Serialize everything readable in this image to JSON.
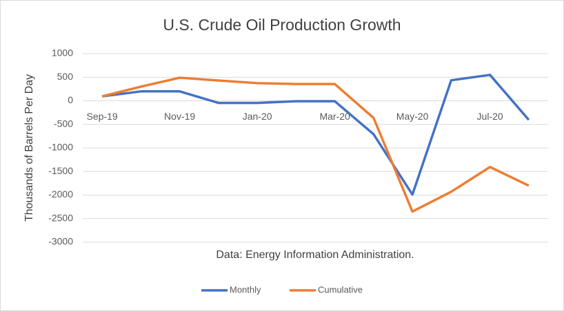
{
  "chart_data": {
    "type": "line",
    "title": "U.S. Crude Oil Production Growth",
    "y_label": "Thousands of Barrels Per Day",
    "annotation": "Data: Energy Information Administration.",
    "categories": [
      "Sep-19",
      null,
      "Nov-19",
      null,
      "Jan-20",
      null,
      "Mar-20",
      null,
      "May-20",
      null,
      "Jul-20",
      null
    ],
    "series": [
      {
        "name": "Monthly",
        "color": "#4472c4",
        "values": [
          95,
          200,
          200,
          -45,
          -45,
          -10,
          -10,
          -710,
          -1990,
          435,
          550,
          -405
        ]
      },
      {
        "name": "Cumulative",
        "color": "#ed7d31",
        "values": [
          95,
          300,
          490,
          430,
          375,
          355,
          355,
          -365,
          -2350,
          -1930,
          -1405,
          -1800
        ]
      }
    ],
    "ylim": [
      -3000,
      1000
    ],
    "yticks": [
      -3000,
      -2500,
      -2000,
      -1500,
      -1000,
      -500,
      0,
      500,
      1000
    ],
    "grid": true,
    "legend": "bottom"
  }
}
